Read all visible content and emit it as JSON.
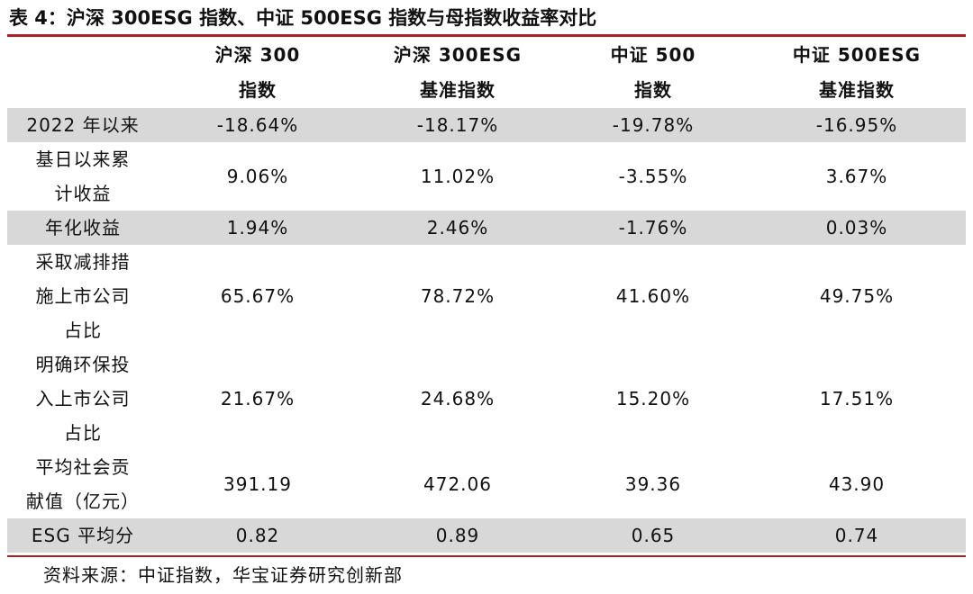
{
  "title": "表 4：沪深 300ESG 指数、中证 500ESG 指数与母指数收益率对比",
  "columns": [
    {
      "line1": "沪深 300",
      "line2": "指数"
    },
    {
      "line1": "沪深 300ESG",
      "line2": "基准指数"
    },
    {
      "line1": "中证 500",
      "line2": "指数"
    },
    {
      "line1": "中证 500ESG",
      "line2": "基准指数"
    }
  ],
  "rows": [
    {
      "label": [
        "2022 年以来"
      ],
      "values": [
        "-18.64%",
        "-18.17%",
        "-19.78%",
        "-16.95%"
      ],
      "shaded": true
    },
    {
      "label": [
        "基日以来累",
        "计收益"
      ],
      "values": [
        "9.06%",
        "11.02%",
        "-3.55%",
        "3.67%"
      ],
      "shaded": false
    },
    {
      "label": [
        "年化收益"
      ],
      "values": [
        "1.94%",
        "2.46%",
        "-1.76%",
        "0.03%"
      ],
      "shaded": true
    },
    {
      "label": [
        "采取减排措",
        "施上市公司",
        "占比"
      ],
      "values": [
        "65.67%",
        "78.72%",
        "41.60%",
        "49.75%"
      ],
      "shaded": false
    },
    {
      "label": [
        "明确环保投",
        "入上市公司",
        "占比"
      ],
      "values": [
        "21.67%",
        "24.68%",
        "15.20%",
        "17.51%"
      ],
      "shaded": false
    },
    {
      "label": [
        "平均社会贡",
        "献值（亿元）"
      ],
      "values": [
        "391.19",
        "472.06",
        "39.36",
        "43.90"
      ],
      "shaded": false
    },
    {
      "label": [
        "ESG 平均分"
      ],
      "values": [
        "0.82",
        "0.89",
        "0.65",
        "0.74"
      ],
      "shaded": true
    }
  ],
  "source": "资料来源：中证指数，华宝证券研究创新部",
  "colors": {
    "accent": "#b01e23",
    "shade": "#d8d8d8"
  }
}
